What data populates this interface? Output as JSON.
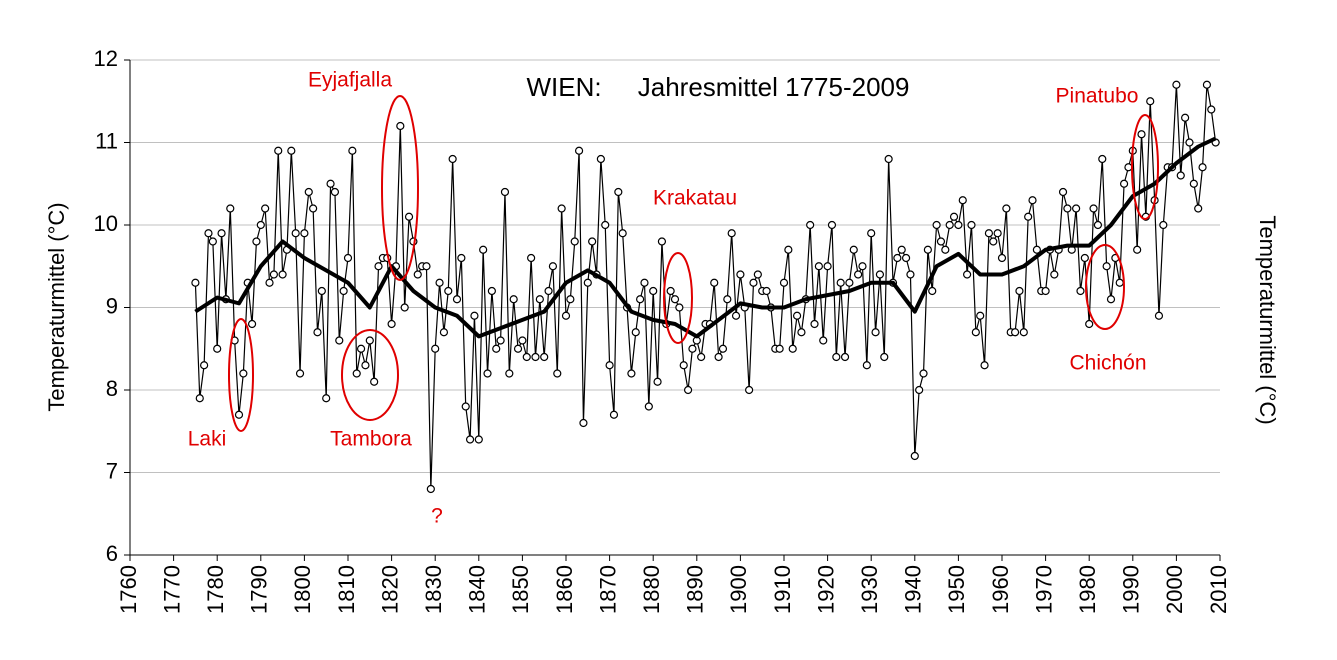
{
  "chart_data": {
    "type": "line",
    "title": "WIEN:     Jahresmittel 1775-2009",
    "ylabel": "Temperaturmittel (°C)",
    "y2label": "Temperaturmittel (°C)",
    "xlim": [
      1760,
      2010
    ],
    "xticks": [
      1760,
      1770,
      1780,
      1790,
      1800,
      1810,
      1820,
      1830,
      1840,
      1850,
      1860,
      1870,
      1880,
      1890,
      1900,
      1910,
      1920,
      1930,
      1940,
      1950,
      1960,
      1970,
      1980,
      1990,
      2000,
      2010
    ],
    "ylim": [
      6,
      12
    ],
    "yticks": [
      6,
      7,
      8,
      9,
      10,
      11,
      12
    ],
    "grid": true,
    "x": [
      1775,
      1776,
      1777,
      1778,
      1779,
      1780,
      1781,
      1782,
      1783,
      1784,
      1785,
      1786,
      1787,
      1788,
      1789,
      1790,
      1791,
      1792,
      1793,
      1794,
      1795,
      1796,
      1797,
      1798,
      1799,
      1800,
      1801,
      1802,
      1803,
      1804,
      1805,
      1806,
      1807,
      1808,
      1809,
      1810,
      1811,
      1812,
      1813,
      1814,
      1815,
      1816,
      1817,
      1818,
      1819,
      1820,
      1821,
      1822,
      1823,
      1824,
      1825,
      1826,
      1827,
      1828,
      1829,
      1830,
      1831,
      1832,
      1833,
      1834,
      1835,
      1836,
      1837,
      1838,
      1839,
      1840,
      1841,
      1842,
      1843,
      1844,
      1845,
      1846,
      1847,
      1848,
      1849,
      1850,
      1851,
      1852,
      1853,
      1854,
      1855,
      1856,
      1857,
      1858,
      1859,
      1860,
      1861,
      1862,
      1863,
      1864,
      1865,
      1866,
      1867,
      1868,
      1869,
      1870,
      1871,
      1872,
      1873,
      1874,
      1875,
      1876,
      1877,
      1878,
      1879,
      1880,
      1881,
      1882,
      1883,
      1884,
      1885,
      1886,
      1887,
      1888,
      1889,
      1890,
      1891,
      1892,
      1893,
      1894,
      1895,
      1896,
      1897,
      1898,
      1899,
      1900,
      1901,
      1902,
      1903,
      1904,
      1905,
      1906,
      1907,
      1908,
      1909,
      1910,
      1911,
      1912,
      1913,
      1914,
      1915,
      1916,
      1917,
      1918,
      1919,
      1920,
      1921,
      1922,
      1923,
      1924,
      1925,
      1926,
      1927,
      1928,
      1929,
      1930,
      1931,
      1932,
      1933,
      1934,
      1935,
      1936,
      1937,
      1938,
      1939,
      1940,
      1941,
      1942,
      1943,
      1944,
      1945,
      1946,
      1947,
      1948,
      1949,
      1950,
      1951,
      1952,
      1953,
      1954,
      1955,
      1956,
      1957,
      1958,
      1959,
      1960,
      1961,
      1962,
      1963,
      1964,
      1965,
      1966,
      1967,
      1968,
      1969,
      1970,
      1971,
      1972,
      1973,
      1974,
      1975,
      1976,
      1977,
      1978,
      1979,
      1980,
      1981,
      1982,
      1983,
      1984,
      1985,
      1986,
      1987,
      1988,
      1989,
      1990,
      1991,
      1992,
      1993,
      1994,
      1995,
      1996,
      1997,
      1998,
      1999,
      2000,
      2001,
      2002,
      2003,
      2004,
      2005,
      2006,
      2007,
      2008,
      2009
    ],
    "series": [
      {
        "color": "#000000",
        "markers": true,
        "values": [
          9.3,
          7.9,
          8.3,
          9.9,
          9.8,
          8.5,
          9.9,
          9.1,
          10.2,
          8.6,
          7.7,
          8.2,
          9.3,
          8.8,
          9.8,
          10.0,
          10.2,
          9.3,
          9.4,
          10.9,
          9.4,
          9.7,
          10.9,
          9.9,
          8.2,
          9.9,
          10.4,
          10.2,
          8.7,
          9.2,
          7.9,
          10.5,
          10.4,
          8.6,
          9.2,
          9.6,
          10.9,
          8.2,
          8.5,
          8.3,
          8.6,
          8.1,
          9.5,
          9.6,
          9.6,
          8.8,
          9.5,
          11.2,
          9.0,
          10.1,
          9.8,
          9.4,
          9.5,
          9.5,
          6.8,
          8.5,
          9.3,
          8.7,
          9.2,
          10.8,
          9.1,
          9.6,
          7.8,
          7.4,
          8.9,
          7.4,
          9.7,
          8.2,
          9.2,
          8.5,
          8.6,
          10.4,
          8.2,
          9.1,
          8.5,
          8.6,
          8.4,
          9.6,
          8.4,
          9.1,
          8.4,
          9.2,
          9.5,
          8.2,
          10.2,
          8.9,
          9.1,
          9.8,
          10.9,
          7.6,
          9.3,
          9.8,
          9.4,
          10.8,
          10.0,
          8.3,
          7.7,
          10.4,
          9.9,
          9.0,
          8.2,
          8.7,
          9.1,
          9.3,
          7.8,
          9.2,
          8.1,
          9.8,
          8.8,
          9.2,
          9.1,
          9.0,
          8.3,
          8.0,
          8.5,
          8.6,
          8.4,
          8.8,
          8.8,
          9.3,
          8.4,
          8.5,
          9.1,
          9.9,
          8.9,
          9.4,
          9.0,
          8.0,
          9.3,
          9.4,
          9.2,
          9.2,
          9.0,
          8.5,
          8.5,
          9.3,
          9.7,
          8.5,
          8.9,
          8.7,
          9.1,
          10.0,
          8.8,
          9.5,
          8.6,
          9.5,
          10.0,
          8.4,
          9.3,
          8.4,
          9.3,
          9.7,
          9.4,
          9.5,
          8.3,
          9.9,
          8.7,
          9.4,
          8.4,
          10.8,
          9.3,
          9.6,
          9.7,
          9.6,
          9.4,
          7.2,
          8.0,
          8.2,
          9.7,
          9.2,
          10.0,
          9.8,
          9.7,
          10.0,
          10.1,
          10.0,
          10.3,
          9.4,
          10.0,
          8.7,
          8.9,
          8.3,
          9.9,
          9.8,
          9.9,
          9.6,
          10.2,
          8.7,
          8.7,
          9.2,
          8.7,
          10.1,
          10.3,
          9.7,
          9.2,
          9.2,
          9.7,
          9.4,
          9.7,
          10.4,
          10.2,
          9.7,
          10.2,
          9.2,
          9.6,
          8.8,
          10.2,
          10.0,
          10.8,
          9.5,
          9.1,
          9.6,
          9.3,
          10.5,
          10.7,
          10.9,
          9.7,
          11.1,
          10.1,
          11.5,
          10.3,
          8.9,
          10.0,
          10.7,
          10.7,
          11.7,
          10.6,
          11.3,
          11.0,
          10.5,
          10.2,
          10.7,
          11.7,
          11.4,
          11.0
        ]
      },
      {
        "color": "#000000",
        "markers": false,
        "x": [
          1775,
          1780,
          1785,
          1790,
          1795,
          1800,
          1805,
          1810,
          1815,
          1820,
          1825,
          1830,
          1835,
          1840,
          1845,
          1850,
          1855,
          1860,
          1865,
          1870,
          1875,
          1880,
          1885,
          1890,
          1895,
          1900,
          1905,
          1910,
          1915,
          1920,
          1925,
          1930,
          1935,
          1940,
          1945,
          1950,
          1955,
          1960,
          1965,
          1970,
          1975,
          1980,
          1985,
          1990,
          1995,
          2000,
          2005,
          2009
        ],
        "values": [
          8.95,
          9.12,
          9.05,
          9.5,
          9.8,
          9.6,
          9.45,
          9.3,
          9.0,
          9.5,
          9.2,
          9.0,
          8.9,
          8.65,
          8.75,
          8.85,
          8.95,
          9.3,
          9.45,
          9.3,
          8.95,
          8.85,
          8.8,
          8.65,
          8.85,
          9.05,
          9.0,
          9.0,
          9.1,
          9.15,
          9.2,
          9.3,
          9.3,
          8.95,
          9.5,
          9.65,
          9.4,
          9.4,
          9.5,
          9.7,
          9.75,
          9.75,
          10.0,
          10.35,
          10.5,
          10.75,
          10.95,
          11.05
        ]
      }
    ],
    "annotations": [
      "Laki",
      "Tambora",
      "Eyjafjalla",
      "?",
      "Krakatau",
      "Pinatubo",
      "Chichón"
    ]
  }
}
